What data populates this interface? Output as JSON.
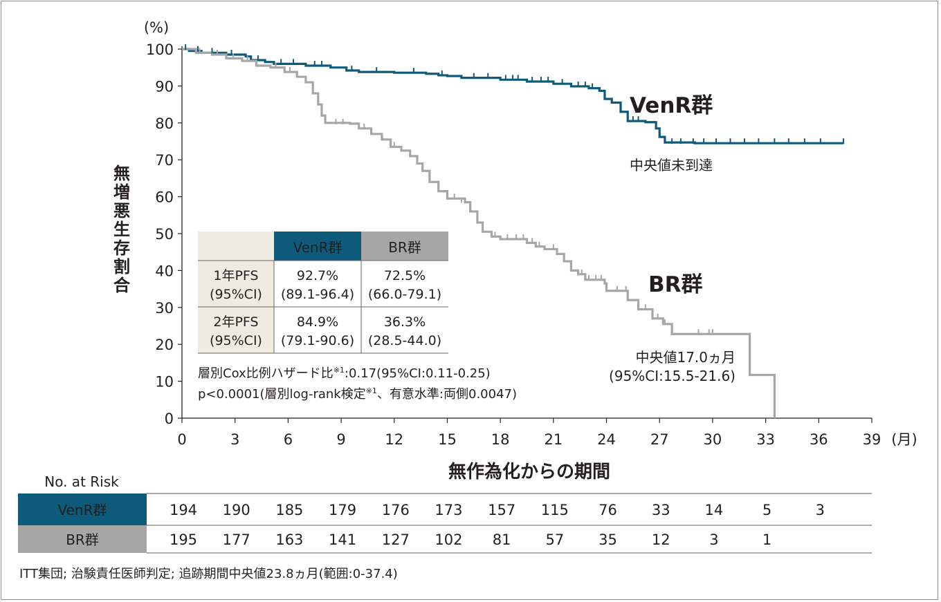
{
  "chart_data": {
    "type": "line",
    "subtype": "kaplan-meier",
    "y_unit": "(%)",
    "x_unit": "(月)",
    "ylabel": "無増悪生存割合",
    "xlabel": "無作為化からの期間",
    "ylim": [
      0,
      100
    ],
    "xlim": [
      0,
      39
    ],
    "yticks": [
      0,
      10,
      20,
      30,
      40,
      50,
      60,
      70,
      80,
      90,
      100
    ],
    "xticks": [
      0,
      3,
      6,
      9,
      12,
      15,
      18,
      21,
      24,
      27,
      30,
      33,
      36,
      39
    ],
    "grid": false,
    "colors": {
      "venr": "#0d5a7a",
      "br": "#a6a6a6"
    },
    "series": [
      {
        "name": "VenR群",
        "color": "#0d5a7a",
        "curve_label": "VenR群",
        "median_label": [
          "中央値未到達"
        ],
        "points": [
          [
            0,
            100
          ],
          [
            0.4,
            99.5
          ],
          [
            1.1,
            99
          ],
          [
            2.5,
            98.5
          ],
          [
            3.6,
            98
          ],
          [
            3.9,
            97
          ],
          [
            4.7,
            96.5
          ],
          [
            5.2,
            96
          ],
          [
            6.8,
            96
          ],
          [
            7.0,
            95.5
          ],
          [
            8.4,
            95
          ],
          [
            9.3,
            94.2
          ],
          [
            10.0,
            93.8
          ],
          [
            12.0,
            93.6
          ],
          [
            13.8,
            93.3
          ],
          [
            14.5,
            92.9
          ],
          [
            15.0,
            92.7
          ],
          [
            15.8,
            92.2
          ],
          [
            18.0,
            91.7
          ],
          [
            19.5,
            91.2
          ],
          [
            21.0,
            90.6
          ],
          [
            22.0,
            89.9
          ],
          [
            23.0,
            89.4
          ],
          [
            23.6,
            88.7
          ],
          [
            23.9,
            86.5
          ],
          [
            24.3,
            85.5
          ],
          [
            24.8,
            83
          ],
          [
            25.2,
            80.5
          ],
          [
            26.2,
            80.2
          ],
          [
            26.8,
            78.5
          ],
          [
            27.0,
            76.2
          ],
          [
            27.3,
            74.7
          ],
          [
            29.0,
            74.5
          ],
          [
            37.4,
            74.5
          ]
        ],
        "censors": [
          [
            0.2,
            100
          ],
          [
            0.9,
            99.5
          ],
          [
            1.7,
            99
          ],
          [
            2.8,
            98.5
          ],
          [
            4.3,
            97
          ],
          [
            5.6,
            96
          ],
          [
            6.3,
            96
          ],
          [
            7.5,
            95.5
          ],
          [
            7.9,
            95.5
          ],
          [
            9.6,
            94.2
          ],
          [
            11.0,
            93.8
          ],
          [
            13.1,
            93.6
          ],
          [
            14.7,
            92.9
          ],
          [
            16.5,
            92.2
          ],
          [
            17.3,
            92.2
          ],
          [
            18.3,
            91.7
          ],
          [
            18.7,
            91.7
          ],
          [
            19.0,
            91.7
          ],
          [
            19.8,
            91.2
          ],
          [
            20.3,
            91.2
          ],
          [
            20.7,
            91.2
          ],
          [
            21.5,
            90.6
          ],
          [
            22.4,
            89.9
          ],
          [
            22.8,
            89.9
          ],
          [
            23.2,
            89.4
          ],
          [
            25.5,
            80.5
          ],
          [
            25.8,
            80.5
          ],
          [
            27.7,
            74.5
          ],
          [
            28.2,
            74.5
          ],
          [
            28.9,
            74.5
          ],
          [
            29.5,
            74.5
          ],
          [
            30.2,
            74.5
          ],
          [
            31.0,
            74.5
          ],
          [
            31.8,
            74.5
          ],
          [
            32.6,
            74.5
          ],
          [
            33.5,
            74.5
          ],
          [
            34.3,
            74.5
          ],
          [
            35.2,
            74.5
          ],
          [
            36.1,
            74.5
          ],
          [
            37.4,
            74.5
          ]
        ]
      },
      {
        "name": "BR群",
        "color": "#a6a6a6",
        "curve_label": "BR群",
        "median_label": [
          "中央値17.0ヵ月",
          "(95%CI:15.5-21.6)"
        ],
        "points": [
          [
            0,
            100
          ],
          [
            0.8,
            99
          ],
          [
            1.7,
            98.5
          ],
          [
            2.5,
            97.5
          ],
          [
            3.4,
            96.8
          ],
          [
            4.2,
            95.5
          ],
          [
            5.0,
            95
          ],
          [
            5.8,
            93.8
          ],
          [
            6.5,
            92.5
          ],
          [
            7.0,
            91
          ],
          [
            7.4,
            88
          ],
          [
            7.7,
            85
          ],
          [
            7.9,
            82
          ],
          [
            8.1,
            80
          ],
          [
            9.5,
            79.8
          ],
          [
            10.0,
            78.5
          ],
          [
            10.7,
            77
          ],
          [
            11.3,
            75.5
          ],
          [
            11.8,
            73.5
          ],
          [
            12.4,
            72.5
          ],
          [
            12.9,
            71
          ],
          [
            13.3,
            69
          ],
          [
            13.6,
            67
          ],
          [
            14.0,
            64
          ],
          [
            14.5,
            61.5
          ],
          [
            15.0,
            59.5
          ],
          [
            16.0,
            58.5
          ],
          [
            16.3,
            56
          ],
          [
            16.7,
            53
          ],
          [
            17.0,
            50.5
          ],
          [
            17.5,
            49.2
          ],
          [
            18.0,
            48.5
          ],
          [
            19.5,
            47.5
          ],
          [
            20.0,
            46.5
          ],
          [
            20.5,
            45.8
          ],
          [
            21.2,
            44.5
          ],
          [
            21.6,
            42.5
          ],
          [
            22.0,
            40
          ],
          [
            22.4,
            39
          ],
          [
            22.8,
            37.5
          ],
          [
            23.9,
            36.5
          ],
          [
            24.0,
            34.5
          ],
          [
            25.2,
            32
          ],
          [
            25.8,
            29.5
          ],
          [
            26.6,
            27
          ],
          [
            27.2,
            25.5
          ],
          [
            27.7,
            22.8
          ],
          [
            32.0,
            22.8
          ],
          [
            32.1,
            11.7
          ],
          [
            33.5,
            11.7
          ],
          [
            33.5,
            0
          ]
        ],
        "censors": [
          [
            1.0,
            99
          ],
          [
            2.0,
            98.5
          ],
          [
            2.9,
            97.5
          ],
          [
            3.7,
            96.8
          ],
          [
            5.3,
            95
          ],
          [
            6.1,
            93.8
          ],
          [
            8.7,
            79.8
          ],
          [
            9.1,
            79.8
          ],
          [
            10.3,
            78.5
          ],
          [
            12.0,
            73.5
          ],
          [
            15.4,
            59.5
          ],
          [
            15.8,
            58.5
          ],
          [
            17.7,
            49.2
          ],
          [
            18.4,
            48.5
          ],
          [
            18.9,
            48.5
          ],
          [
            19.3,
            48.5
          ],
          [
            19.8,
            47.5
          ],
          [
            20.2,
            46.5
          ],
          [
            21.0,
            45.8
          ],
          [
            22.6,
            39
          ],
          [
            23.0,
            37.5
          ],
          [
            23.4,
            37.5
          ],
          [
            23.7,
            37.5
          ],
          [
            24.6,
            34.5
          ],
          [
            25.1,
            34.5
          ],
          [
            26.2,
            29.5
          ],
          [
            26.9,
            27
          ],
          [
            27.3,
            25.5
          ],
          [
            29.2,
            22.8
          ],
          [
            29.8,
            22.8
          ],
          [
            30.0,
            22.8
          ]
        ]
      }
    ],
    "table": {
      "headers": [
        "",
        "VenR群",
        "BR群"
      ],
      "rows": [
        {
          "label": [
            "1年PFS",
            "(95%CI)"
          ],
          "venr": [
            "92.7%",
            "(89.1-96.4)"
          ],
          "br": [
            "72.5%",
            "(66.0-79.1)"
          ]
        },
        {
          "label": [
            "2年PFS",
            "(95%CI)"
          ],
          "venr": [
            "84.9%",
            "(79.1-90.6)"
          ],
          "br": [
            "36.3%",
            "(28.5-44.0)"
          ]
        }
      ]
    },
    "stats": {
      "hr_pre": "層別Cox比例ハザード比",
      "hr_sup": "※1",
      "hr_post": ":0.17(95%CI:0.11-0.25)",
      "p_pre": "p<0.0001(層別log-rank検定",
      "p_sup": "※1",
      "p_post": "、有意水準:両側0.0047)"
    },
    "risk_table": {
      "title": "No. at Risk",
      "times": [
        0,
        3,
        6,
        9,
        12,
        15,
        18,
        21,
        24,
        27,
        30,
        33,
        36
      ],
      "rows": [
        {
          "name": "VenR群",
          "values": [
            "194",
            "190",
            "185",
            "179",
            "176",
            "173",
            "157",
            "115",
            "76",
            "33",
            "14",
            "5",
            "3"
          ]
        },
        {
          "name": "BR群",
          "values": [
            "195",
            "177",
            "163",
            "141",
            "127",
            "102",
            "81",
            "57",
            "35",
            "12",
            "3",
            "1",
            ""
          ]
        }
      ]
    },
    "footnote": "ITT集団; 治験責任医師判定; 追跡期間中央値23.8ヵ月(範囲:0-37.4)"
  }
}
